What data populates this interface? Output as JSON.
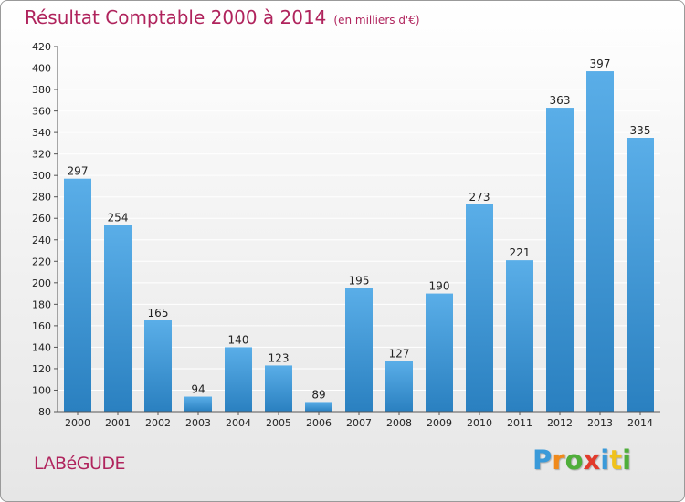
{
  "title": "Résultat Comptable 2000 à 2014",
  "subtitle": "(en milliers d'€)",
  "commune": "LABéGUDE",
  "logo": {
    "letters": [
      {
        "char": "P",
        "color": "#3a9ad9"
      },
      {
        "char": "r",
        "color": "#f08a1c"
      },
      {
        "char": "o",
        "color": "#4fae3a"
      },
      {
        "char": "x",
        "color": "#e23b2c"
      },
      {
        "char": "i",
        "color": "#3a9ad9"
      },
      {
        "char": "t",
        "color": "#f0c21c"
      },
      {
        "char": "i",
        "color": "#4fae3a"
      }
    ]
  },
  "colors": {
    "bar_top": "#5aaee8",
    "bar_bottom": "#2a80c0",
    "title": "#b0245d",
    "grid": "#ffffff"
  },
  "chart_data": {
    "type": "bar",
    "categories": [
      "2000",
      "2001",
      "2002",
      "2003",
      "2004",
      "2005",
      "2006",
      "2007",
      "2008",
      "2009",
      "2010",
      "2011",
      "2012",
      "2013",
      "2014"
    ],
    "values": [
      297,
      254,
      165,
      94,
      140,
      123,
      89,
      195,
      127,
      190,
      273,
      221,
      363,
      397,
      335
    ],
    "ylim": [
      80,
      420
    ],
    "yticks": [
      80,
      100,
      120,
      140,
      160,
      180,
      200,
      220,
      240,
      260,
      280,
      300,
      320,
      340,
      360,
      380,
      400,
      420
    ],
    "grid": true,
    "xlabel": "",
    "ylabel": ""
  }
}
